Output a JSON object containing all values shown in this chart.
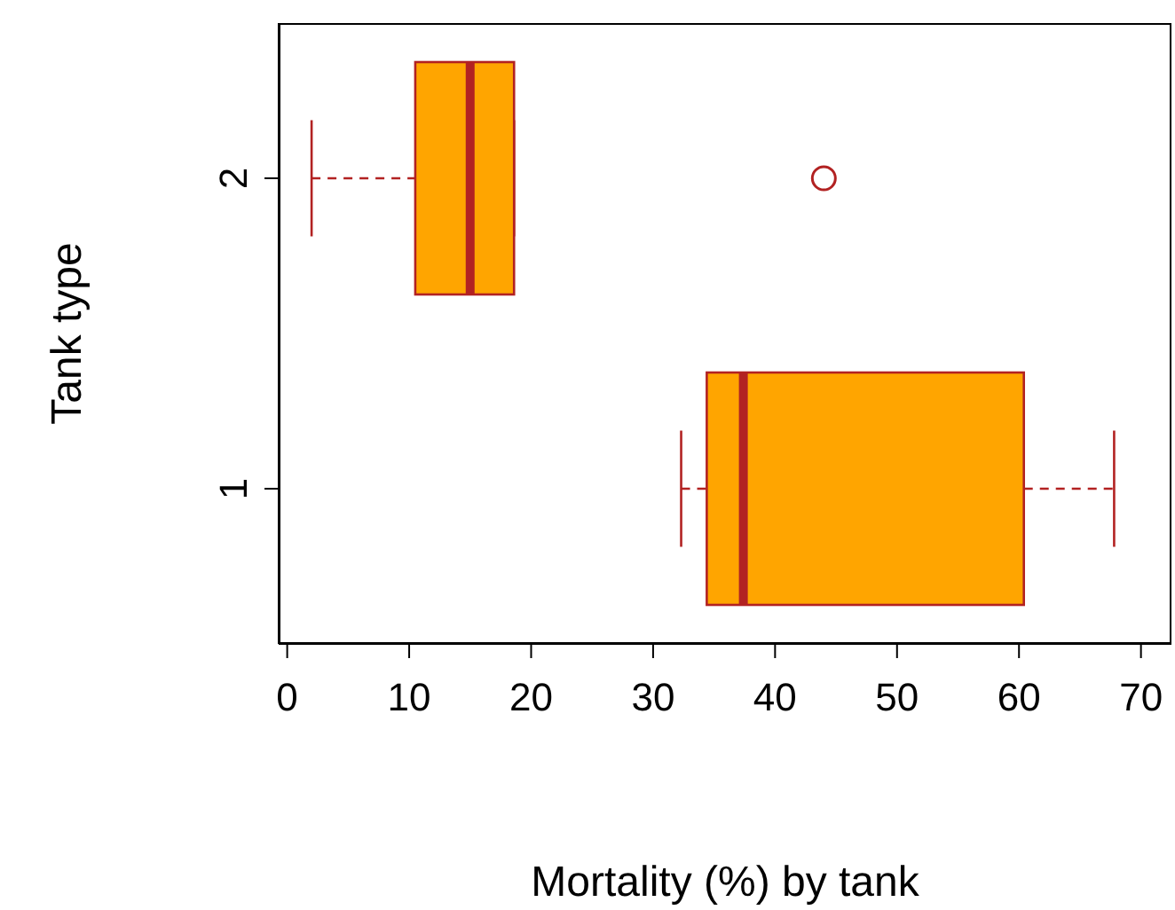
{
  "chart_data": {
    "type": "box",
    "orientation": "horizontal",
    "xlabel": "Mortality (%) by tank",
    "ylabel": "Tank type",
    "categories": [
      "2",
      "1"
    ],
    "color": "#ffa500",
    "boxes": [
      {
        "low": 2.0,
        "q1": 10.5,
        "median": 15.0,
        "q3": 18.6,
        "high": 18.6,
        "outliers": [
          44
        ]
      },
      {
        "low": 32.3,
        "q1": 34.4,
        "median": 37.4,
        "q3": 60.4,
        "high": 67.8
      }
    ],
    "xlim": [
      -0.7,
      72.5
    ],
    "xticks": [
      0,
      10,
      20,
      30,
      40,
      50,
      60,
      70
    ]
  }
}
